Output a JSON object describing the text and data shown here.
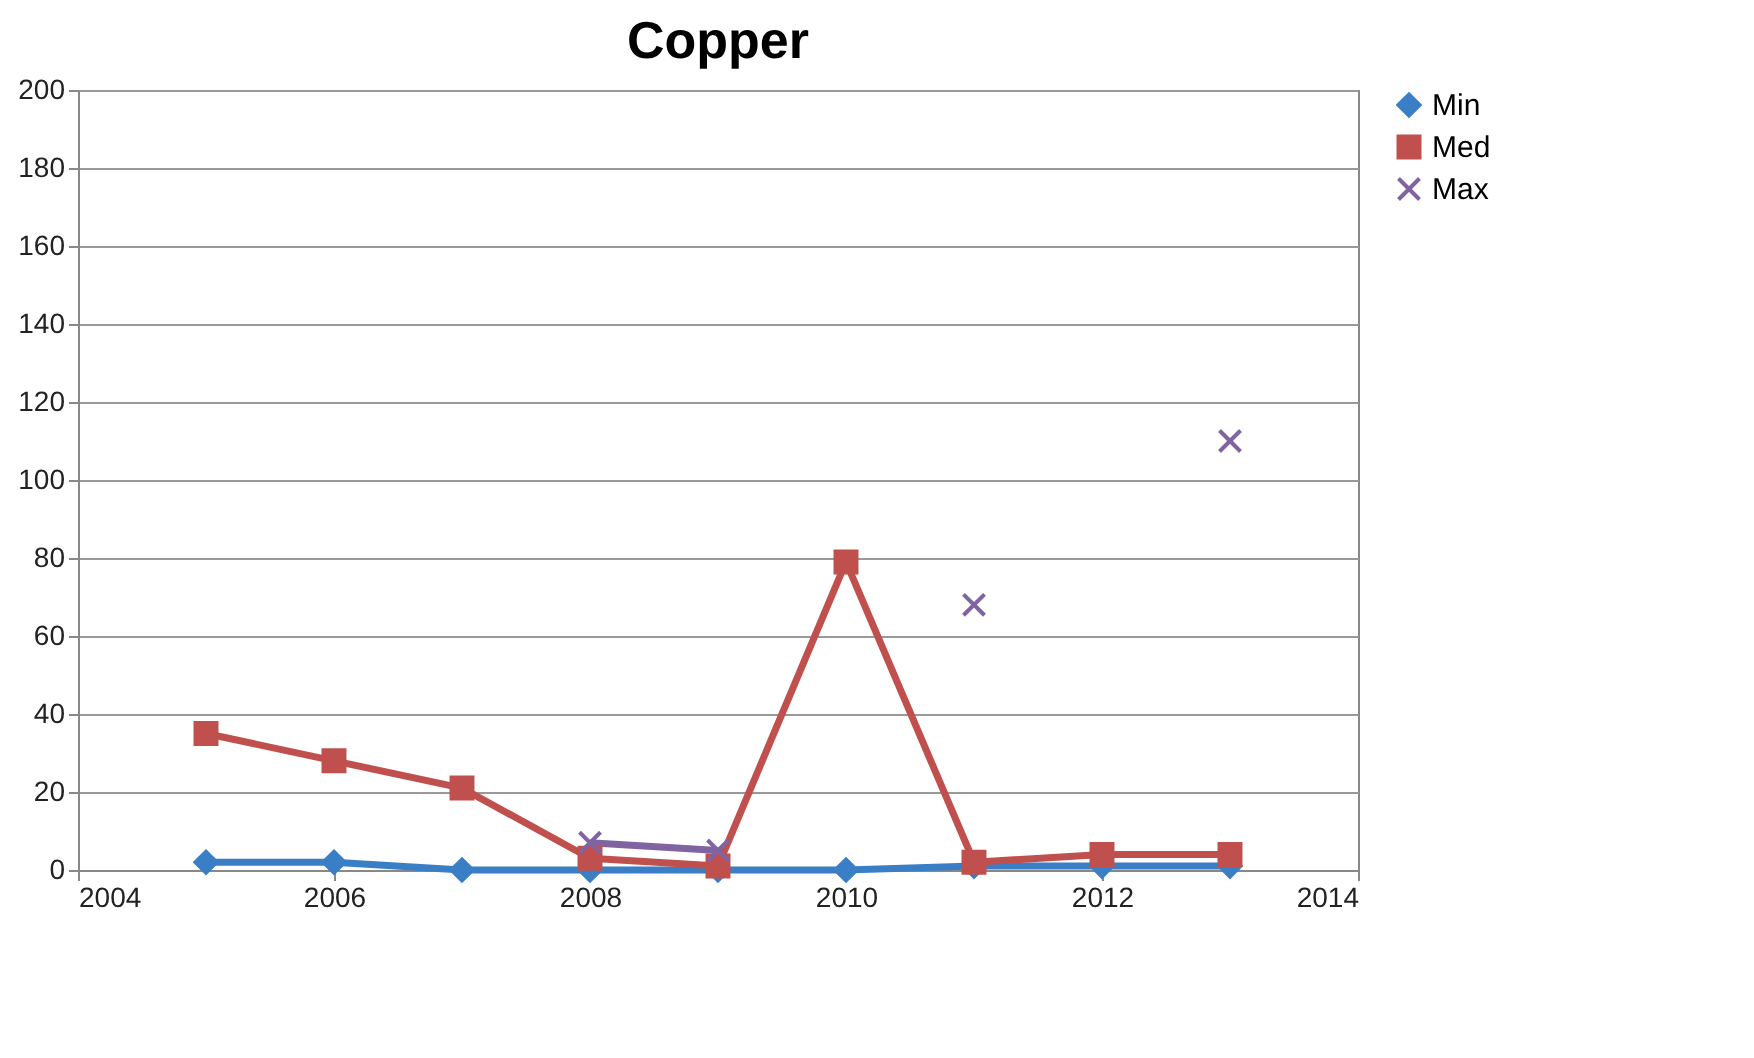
{
  "chart_data": {
    "type": "line",
    "title": "Copper",
    "x": [
      2005,
      2006,
      2007,
      2008,
      2009,
      2010,
      2011,
      2012,
      2013
    ],
    "series": [
      {
        "name": "Min",
        "color": "#3a7fc6",
        "marker": "diamond",
        "values": [
          2,
          2,
          0,
          0,
          0,
          0,
          1,
          1,
          1
        ]
      },
      {
        "name": "Med",
        "color": "#c0504d",
        "marker": "square",
        "values": [
          35,
          28,
          21,
          3,
          1,
          79,
          2,
          4,
          4
        ]
      },
      {
        "name": "Max",
        "color": "#8064a2",
        "marker": "cross",
        "values": [
          null,
          null,
          null,
          7,
          5,
          null,
          68,
          null,
          110
        ]
      }
    ],
    "xlim": [
      2004,
      2014
    ],
    "xticks": [
      2004,
      2006,
      2008,
      2010,
      2012,
      2014
    ],
    "ylim": [
      0,
      200
    ],
    "yticks": [
      0,
      20,
      40,
      60,
      80,
      100,
      120,
      140,
      160,
      180,
      200
    ],
    "grid": "y",
    "legend": "right"
  }
}
